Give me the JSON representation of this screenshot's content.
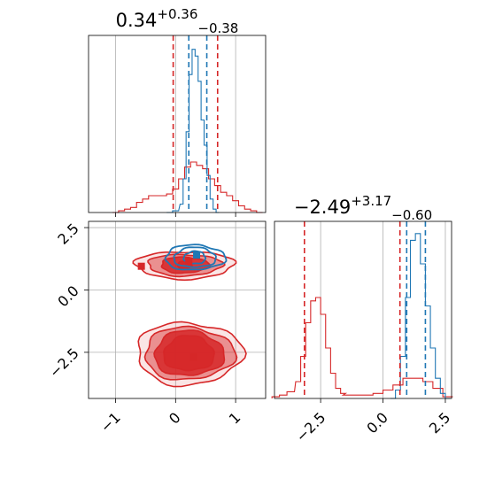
{
  "chart_data": {
    "type": "corner",
    "colors": {
      "blue": "#1f77b4",
      "red": "#d62728",
      "red_fill": "#e8969a",
      "red_dark": "#d62728"
    },
    "grid": true,
    "parameters": [
      "p0",
      "p1"
    ],
    "titles": [
      {
        "value": "0.34",
        "plus": "+0.36",
        "minus": "−0.38"
      },
      {
        "value": "−2.49",
        "plus": "+3.17",
        "minus": "−0.60"
      }
    ],
    "axes": {
      "p0": {
        "range": [
          -1.45,
          1.5
        ],
        "ticks": [
          -1,
          0,
          1
        ],
        "tick_labels": [
          "−1",
          "0",
          "1"
        ]
      },
      "p1": {
        "range": [
          -4.35,
          2.75
        ],
        "ticks": [
          -2.5,
          0.0,
          2.5
        ],
        "tick_labels": [
          "−2.5",
          "0.0",
          "2.5"
        ]
      }
    },
    "marginals": [
      {
        "param": "p0",
        "quantile_lines": {
          "blue": [
            0.22,
            0.52
          ],
          "red": [
            -0.04,
            0.7
          ]
        },
        "series": [
          {
            "name": "",
            "color": "blue",
            "x": [
              -0.1,
              0.0,
              0.1,
              0.15,
              0.2,
              0.25,
              0.3,
              0.35,
              0.4,
              0.45,
              0.5,
              0.55,
              0.6,
              0.65,
              0.7
            ],
            "y": [
              0.0,
              0.01,
              0.05,
              0.2,
              0.48,
              0.82,
              0.97,
              0.93,
              0.78,
              0.55,
              0.4,
              0.22,
              0.08,
              0.02,
              0.0
            ]
          },
          {
            "name": "",
            "color": "red",
            "x": [
              -1.0,
              -0.9,
              -0.8,
              -0.7,
              -0.6,
              -0.5,
              -0.4,
              -0.3,
              -0.2,
              -0.1,
              0.0,
              0.1,
              0.2,
              0.3,
              0.4,
              0.5,
              0.6,
              0.7,
              0.8,
              0.9,
              1.0,
              1.1,
              1.2,
              1.3,
              1.4
            ],
            "y": [
              0.0,
              0.01,
              0.02,
              0.03,
              0.06,
              0.08,
              0.1,
              0.1,
              0.1,
              0.11,
              0.14,
              0.2,
              0.27,
              0.3,
              0.28,
              0.26,
              0.2,
              0.16,
              0.12,
              0.1,
              0.07,
              0.04,
              0.02,
              0.01,
              0.0
            ]
          }
        ]
      },
      {
        "param": "p1",
        "quantile_lines": {
          "blue": [
            0.95,
            1.7
          ],
          "red": [
            -3.15,
            0.68
          ]
        },
        "series": [
          {
            "name": "",
            "color": "blue",
            "x": [
              0.4,
              0.6,
              0.8,
              1.0,
              1.2,
              1.4,
              1.6,
              1.8,
              2.0,
              2.2,
              2.4,
              2.6
            ],
            "y": [
              0.0,
              0.05,
              0.25,
              0.6,
              0.94,
              0.98,
              0.8,
              0.55,
              0.3,
              0.12,
              0.03,
              0.0
            ]
          },
          {
            "name": "",
            "color": "red",
            "x": [
              -4.3,
              -4.0,
              -3.7,
              -3.4,
              -3.2,
              -3.0,
              -2.8,
              -2.6,
              -2.4,
              -2.2,
              -2.0,
              -1.8,
              -1.6,
              -1.4,
              -1.0,
              -0.6,
              -0.2,
              0.2,
              0.6,
              1.0,
              1.4,
              1.8,
              2.2,
              2.6
            ],
            "y": [
              0.01,
              0.02,
              0.04,
              0.1,
              0.25,
              0.45,
              0.58,
              0.6,
              0.5,
              0.3,
              0.15,
              0.06,
              0.03,
              0.02,
              0.02,
              0.02,
              0.03,
              0.05,
              0.08,
              0.12,
              0.12,
              0.1,
              0.06,
              0.01
            ]
          }
        ]
      }
    ],
    "joint": {
      "x_param": "p0",
      "y_param": "p1",
      "red_modes": [
        {
          "center": [
            0.15,
            1.0
          ],
          "levels": [
            [
              0.82,
              0.55
            ],
            [
              0.62,
              0.43
            ],
            [
              0.4,
              0.32
            ],
            [
              0.12,
              0.15
            ]
          ]
        },
        {
          "center": [
            0.22,
            -2.55
          ],
          "levels": [
            [
              0.88,
              1.25
            ],
            [
              0.75,
              1.05
            ],
            [
              0.58,
              0.9
            ],
            [
              0.42,
              0.7
            ]
          ]
        }
      ],
      "blue_mode": {
        "center": [
          0.32,
          1.3
        ],
        "levels": [
          [
            0.5,
            0.5
          ],
          [
            0.35,
            0.4
          ],
          [
            0.18,
            0.25
          ]
        ]
      },
      "markers": [
        {
          "color": "red",
          "x": -0.57,
          "y": 0.95
        },
        {
          "color": "red",
          "x": 0.3,
          "y": -2.7
        },
        {
          "color": "red",
          "x": 0.22,
          "y": 1.15
        },
        {
          "color": "blue",
          "x": 0.35,
          "y": 1.4
        }
      ]
    }
  }
}
